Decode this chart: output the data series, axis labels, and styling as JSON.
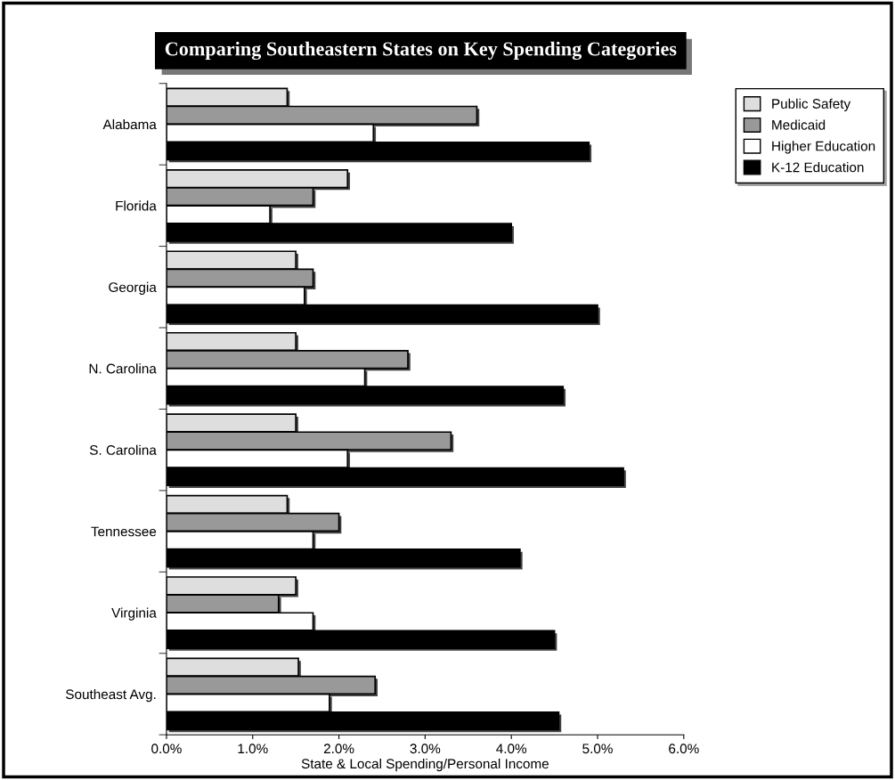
{
  "chart_data": {
    "type": "bar",
    "orientation": "horizontal",
    "title": "Comparing Southeastern States on Key Spending Categories",
    "xlabel": "State & Local Spending/Personal Income",
    "categories": [
      "Alabama",
      "Florida",
      "Georgia",
      "N. Carolina",
      "S. Carolina",
      "Tennessee",
      "Virginia",
      "Southeast Avg."
    ],
    "series": [
      {
        "name": "Public Safety",
        "color": "#dedede",
        "values": [
          1.4,
          2.1,
          1.5,
          1.5,
          1.5,
          1.4,
          1.5,
          1.53
        ]
      },
      {
        "name": "Medicaid",
        "color": "#999999",
        "values": [
          3.6,
          1.7,
          1.7,
          2.8,
          3.3,
          2.0,
          1.3,
          2.42
        ]
      },
      {
        "name": "Higher Education",
        "color": "#ffffff",
        "values": [
          2.4,
          1.2,
          1.6,
          2.3,
          2.1,
          1.7,
          1.7,
          1.89
        ]
      },
      {
        "name": "K-12 Education",
        "color": "#000000",
        "values": [
          4.9,
          4.0,
          5.0,
          4.6,
          5.3,
          4.1,
          4.5,
          4.55
        ]
      }
    ],
    "xlim": [
      0,
      6
    ],
    "xticks": [
      {
        "value": 0,
        "label": "0.0%"
      },
      {
        "value": 1,
        "label": "1.0%"
      },
      {
        "value": 2,
        "label": "2.0%"
      },
      {
        "value": 3,
        "label": "3.0%"
      },
      {
        "value": 4,
        "label": "4.0%"
      },
      {
        "value": 5,
        "label": "5.0%"
      },
      {
        "value": 6,
        "label": "6.0%"
      }
    ],
    "grid": false,
    "legend": "top right"
  }
}
